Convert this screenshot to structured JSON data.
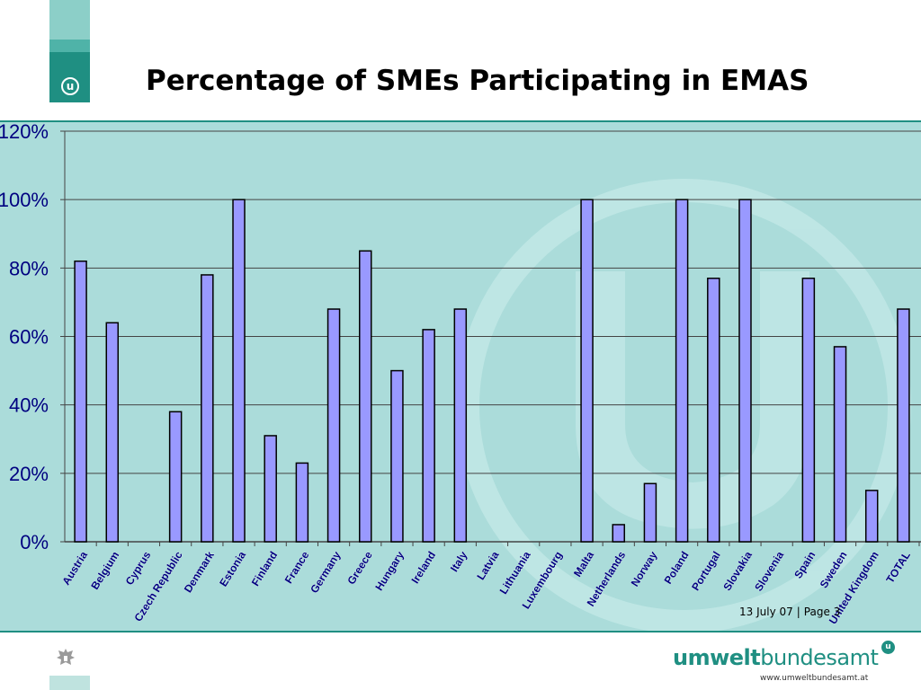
{
  "header": {
    "title": "Percentage of SMEs Participating in EMAS",
    "logo_icon": "umweltbundesamt-u-logo-icon"
  },
  "footer": {
    "date": "13 July 07",
    "separator": "|",
    "page": "Page 3",
    "brand_bold": "umwelt",
    "brand_regular": "bundesamt",
    "brand_icon": "u-logo-icon",
    "url": "www.umweltbundesamt.at",
    "crest_icon": "austrian-eagle-icon"
  },
  "colors": {
    "accent": "#1f8f82",
    "accent_light": "#8ccfc8",
    "plot_background": "#abdcda",
    "bar_fill": "#9999ff",
    "bar_stroke": "#000000",
    "axis_text": "#000080"
  },
  "chart_data": {
    "type": "bar",
    "title": "",
    "xlabel": "",
    "ylabel": "",
    "ylim": [
      0,
      1.2
    ],
    "yticks": [
      0,
      0.2,
      0.4,
      0.6,
      0.8,
      1.0,
      1.2
    ],
    "ytick_labels": [
      "0%",
      "20%",
      "40%",
      "60%",
      "80%",
      "100%",
      "120%"
    ],
    "grid": true,
    "legend": "none",
    "categories": [
      "Austria",
      "Belgium",
      "Cyprus",
      "Czech Republic",
      "Denmark",
      "Estonia",
      "Finland",
      "France",
      "Germany",
      "Greece",
      "Hungary",
      "Ireland",
      "Italy",
      "Latvia",
      "Lithuania",
      "Luxembourg",
      "Malta",
      "Netherlands",
      "Norway",
      "Poland",
      "Portugal",
      "Slovakia",
      "Slovenia",
      "Spain",
      "Sweden",
      "United Kingdom",
      "TOTAL"
    ],
    "values": [
      0.82,
      0.64,
      null,
      0.38,
      0.78,
      1.0,
      0.31,
      0.23,
      0.68,
      0.85,
      0.5,
      0.62,
      0.68,
      null,
      null,
      null,
      1.0,
      0.05,
      0.17,
      1.0,
      0.77,
      1.0,
      null,
      0.77,
      0.57,
      0.15,
      0.68
    ]
  }
}
